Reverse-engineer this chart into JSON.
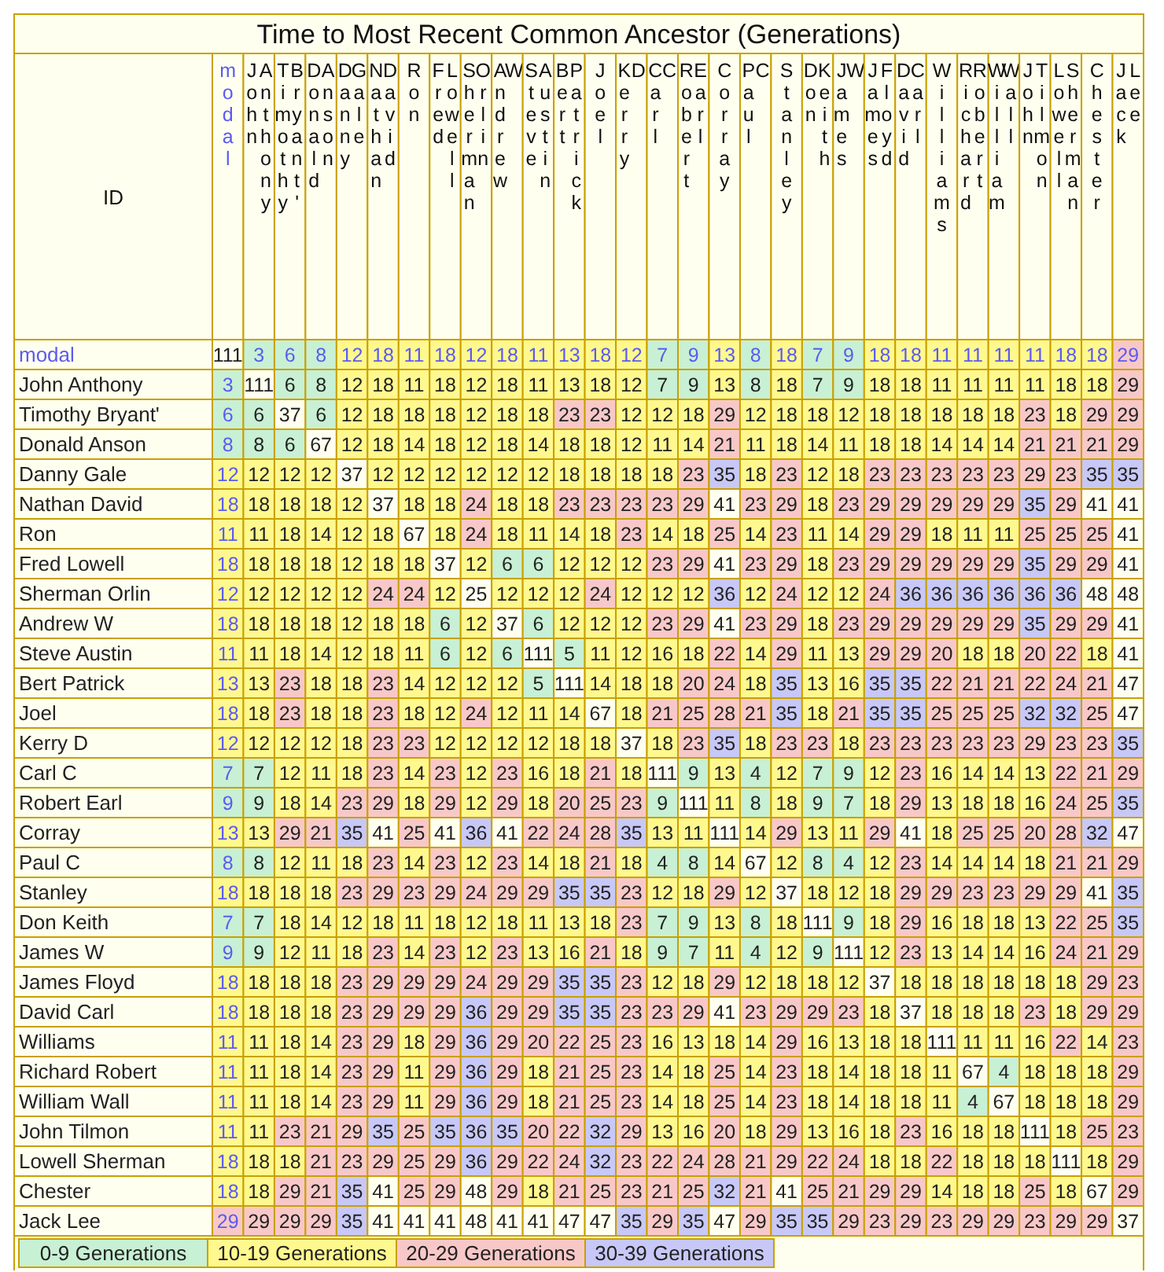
{
  "chart_data": {
    "type": "heatmap",
    "title": "Time to Most Recent Common Ancestor (Generations)",
    "ylabel": "ID",
    "categories": [
      "modal",
      "John Anthony",
      "Timothy Bryant'",
      "Donald Anson",
      "Danny Gale",
      "Nathan David",
      "Ron",
      "Fred Lowell",
      "Sherman Orlin",
      "Andrew W",
      "Steve Austin",
      "Bert Patrick",
      "Joel",
      "Kerry D",
      "Carl C",
      "Robert Earl",
      "Corray",
      "Paul C",
      "Stanley",
      "Don Keith",
      "James W",
      "James Floyd",
      "David Carl",
      "Williams",
      "Richard Robert",
      "William Wall",
      "John Tilmon",
      "Lowell Sherman",
      "Chester",
      "Jack Lee"
    ],
    "y_categories": [
      "modal",
      "John Anthony",
      "Timothy Bryant'",
      "Donald Anson",
      "Danny Gale",
      "Nathan David",
      "Ron",
      "Fred Lowell",
      "Sherman Orlin",
      "Andrew W",
      "Steve Austin",
      "Bert Patrick",
      "Joel",
      "Kerry D",
      "Carl C",
      "Robert Earl",
      "Corray",
      "Paul C",
      "Stanley",
      "Don Keith",
      "James W",
      "James Floyd",
      "David Carl",
      "Williams",
      "Richard Robert",
      "William Wall",
      "John Tilmon",
      "Lowell Sherman",
      "Chester",
      "Jack Lee"
    ],
    "cells": [
      [
        111,
        3,
        6,
        8,
        12,
        18,
        11,
        18,
        12,
        18,
        11,
        13,
        18,
        12,
        7,
        9,
        13,
        8,
        18,
        7,
        9,
        18,
        18,
        11,
        11,
        11,
        11,
        18,
        18,
        29
      ],
      [
        3,
        111,
        6,
        8,
        12,
        18,
        11,
        18,
        12,
        18,
        11,
        13,
        18,
        12,
        7,
        9,
        13,
        8,
        18,
        7,
        9,
        18,
        18,
        11,
        11,
        11,
        11,
        18,
        18,
        29
      ],
      [
        6,
        6,
        37,
        6,
        12,
        18,
        18,
        18,
        12,
        18,
        18,
        23,
        23,
        12,
        12,
        18,
        29,
        12,
        18,
        18,
        12,
        18,
        18,
        18,
        18,
        18,
        23,
        18,
        29,
        29
      ],
      [
        8,
        8,
        6,
        67,
        12,
        18,
        14,
        18,
        12,
        18,
        14,
        18,
        18,
        12,
        11,
        14,
        21,
        11,
        18,
        14,
        11,
        18,
        18,
        14,
        14,
        14,
        21,
        21,
        21,
        29
      ],
      [
        12,
        12,
        12,
        12,
        37,
        12,
        12,
        12,
        12,
        12,
        12,
        18,
        18,
        18,
        18,
        23,
        35,
        18,
        23,
        12,
        18,
        23,
        23,
        23,
        23,
        23,
        29,
        23,
        35,
        35
      ],
      [
        18,
        18,
        18,
        18,
        12,
        37,
        18,
        18,
        24,
        18,
        18,
        23,
        23,
        23,
        23,
        29,
        41,
        23,
        29,
        18,
        23,
        29,
        29,
        29,
        29,
        29,
        35,
        29,
        41,
        41
      ],
      [
        11,
        11,
        18,
        14,
        12,
        18,
        67,
        18,
        24,
        18,
        11,
        14,
        18,
        23,
        14,
        18,
        25,
        14,
        23,
        11,
        14,
        29,
        29,
        18,
        11,
        11,
        25,
        25,
        25,
        41
      ],
      [
        18,
        18,
        18,
        18,
        12,
        18,
        18,
        37,
        12,
        6,
        6,
        12,
        12,
        12,
        23,
        29,
        41,
        23,
        29,
        18,
        23,
        29,
        29,
        29,
        29,
        29,
        35,
        29,
        29,
        41
      ],
      [
        12,
        12,
        12,
        12,
        12,
        24,
        24,
        12,
        25,
        12,
        12,
        12,
        24,
        12,
        12,
        12,
        36,
        12,
        24,
        12,
        12,
        24,
        36,
        36,
        36,
        36,
        36,
        36,
        48,
        48
      ],
      [
        18,
        18,
        18,
        18,
        12,
        18,
        18,
        6,
        12,
        37,
        6,
        12,
        12,
        12,
        23,
        29,
        41,
        23,
        29,
        18,
        23,
        29,
        29,
        29,
        29,
        29,
        35,
        29,
        29,
        41
      ],
      [
        11,
        11,
        18,
        14,
        12,
        18,
        11,
        6,
        12,
        6,
        111,
        5,
        11,
        12,
        16,
        18,
        22,
        14,
        29,
        11,
        13,
        29,
        29,
        20,
        18,
        18,
        20,
        22,
        18,
        41
      ],
      [
        13,
        13,
        23,
        18,
        18,
        23,
        14,
        12,
        12,
        12,
        5,
        111,
        14,
        18,
        18,
        20,
        24,
        18,
        35,
        13,
        16,
        35,
        35,
        22,
        21,
        21,
        22,
        24,
        21,
        47
      ],
      [
        18,
        18,
        23,
        18,
        18,
        23,
        18,
        12,
        24,
        12,
        11,
        14,
        67,
        18,
        21,
        25,
        28,
        21,
        35,
        18,
        21,
        35,
        35,
        25,
        25,
        25,
        32,
        32,
        25,
        47
      ],
      [
        12,
        12,
        12,
        12,
        18,
        23,
        23,
        12,
        12,
        12,
        12,
        18,
        18,
        37,
        18,
        23,
        35,
        18,
        23,
        23,
        18,
        23,
        23,
        23,
        23,
        23,
        29,
        23,
        23,
        35
      ],
      [
        7,
        7,
        12,
        11,
        18,
        23,
        14,
        23,
        12,
        23,
        16,
        18,
        21,
        18,
        111,
        9,
        13,
        4,
        12,
        7,
        9,
        12,
        23,
        16,
        14,
        14,
        13,
        22,
        21,
        29
      ],
      [
        9,
        9,
        18,
        14,
        23,
        29,
        18,
        29,
        12,
        29,
        18,
        20,
        25,
        23,
        9,
        111,
        11,
        8,
        18,
        9,
        7,
        18,
        29,
        13,
        18,
        18,
        16,
        24,
        25,
        35
      ],
      [
        13,
        13,
        29,
        21,
        35,
        41,
        25,
        41,
        36,
        41,
        22,
        24,
        28,
        35,
        13,
        11,
        111,
        14,
        29,
        13,
        11,
        29,
        41,
        18,
        25,
        25,
        20,
        28,
        32,
        47
      ],
      [
        8,
        8,
        12,
        11,
        18,
        23,
        14,
        23,
        12,
        23,
        14,
        18,
        21,
        18,
        4,
        8,
        14,
        67,
        12,
        8,
        4,
        12,
        23,
        14,
        14,
        14,
        18,
        21,
        21,
        29
      ],
      [
        18,
        18,
        18,
        18,
        23,
        29,
        23,
        29,
        24,
        29,
        29,
        35,
        35,
        23,
        12,
        18,
        29,
        12,
        37,
        18,
        12,
        18,
        29,
        29,
        23,
        23,
        29,
        29,
        41,
        35
      ],
      [
        7,
        7,
        18,
        14,
        12,
        18,
        11,
        18,
        12,
        18,
        11,
        13,
        18,
        23,
        7,
        9,
        13,
        8,
        18,
        111,
        9,
        18,
        29,
        16,
        18,
        18,
        13,
        22,
        25,
        35
      ],
      [
        9,
        9,
        12,
        11,
        18,
        23,
        14,
        23,
        12,
        23,
        13,
        16,
        21,
        18,
        9,
        7,
        11,
        4,
        12,
        9,
        111,
        12,
        23,
        13,
        14,
        14,
        16,
        24,
        21,
        29
      ],
      [
        18,
        18,
        18,
        18,
        23,
        29,
        29,
        29,
        24,
        29,
        29,
        35,
        35,
        23,
        12,
        18,
        29,
        12,
        18,
        18,
        12,
        37,
        18,
        18,
        18,
        18,
        18,
        18,
        29,
        23
      ],
      [
        18,
        18,
        18,
        18,
        23,
        29,
        29,
        29,
        36,
        29,
        29,
        35,
        35,
        23,
        23,
        29,
        41,
        23,
        29,
        29,
        23,
        18,
        37,
        18,
        18,
        18,
        23,
        18,
        29,
        29
      ],
      [
        11,
        11,
        18,
        14,
        23,
        29,
        18,
        29,
        36,
        29,
        20,
        22,
        25,
        23,
        16,
        13,
        18,
        14,
        29,
        16,
        13,
        18,
        18,
        111,
        11,
        11,
        16,
        22,
        14,
        23
      ],
      [
        11,
        11,
        18,
        14,
        23,
        29,
        11,
        29,
        36,
        29,
        18,
        21,
        25,
        23,
        14,
        18,
        25,
        14,
        23,
        18,
        14,
        18,
        18,
        11,
        67,
        4,
        18,
        18,
        18,
        29
      ],
      [
        11,
        11,
        18,
        14,
        23,
        29,
        11,
        29,
        36,
        29,
        18,
        21,
        25,
        23,
        14,
        18,
        25,
        14,
        23,
        18,
        14,
        18,
        18,
        11,
        4,
        67,
        18,
        18,
        18,
        29
      ],
      [
        11,
        11,
        23,
        21,
        29,
        35,
        25,
        35,
        36,
        35,
        20,
        22,
        32,
        29,
        13,
        16,
        20,
        18,
        29,
        13,
        16,
        18,
        23,
        16,
        18,
        18,
        111,
        18,
        25,
        23
      ],
      [
        18,
        18,
        18,
        21,
        23,
        29,
        25,
        29,
        36,
        29,
        22,
        24,
        32,
        23,
        22,
        24,
        28,
        21,
        29,
        22,
        24,
        18,
        18,
        22,
        18,
        18,
        18,
        111,
        18,
        29
      ],
      [
        18,
        18,
        29,
        21,
        35,
        41,
        25,
        29,
        48,
        29,
        18,
        21,
        25,
        23,
        21,
        25,
        32,
        21,
        41,
        25,
        21,
        29,
        29,
        14,
        18,
        18,
        25,
        18,
        67,
        29
      ],
      [
        29,
        29,
        29,
        29,
        35,
        41,
        41,
        41,
        48,
        41,
        41,
        47,
        47,
        35,
        29,
        35,
        47,
        29,
        35,
        35,
        29,
        23,
        29,
        23,
        29,
        29,
        23,
        29,
        29,
        37
      ]
    ],
    "annotations": [
      "0-9 Generations",
      "10-19 Generations",
      "20-29 Generations",
      "30-39 Generations"
    ],
    "colors": [
      "#c8f0d4",
      "#fff88e",
      "#f8c8c8",
      "#c8c8f8"
    ],
    "data_labels": true
  }
}
